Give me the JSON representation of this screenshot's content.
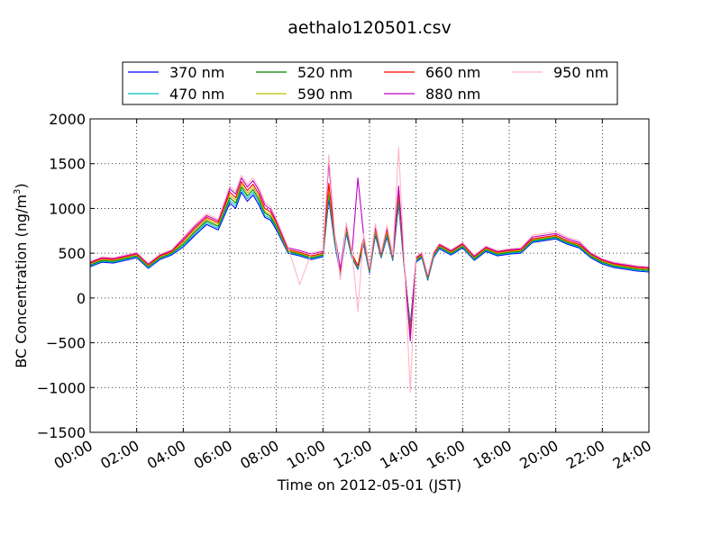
{
  "chart_data": {
    "type": "line",
    "title": "aethalo120501.csv",
    "xlabel": "Time on 2012-05-01 (JST)",
    "ylabel": "BC Concentration (ng/m",
    "ylabel_sup": "3",
    "ylabel_tail": ")",
    "xlim": [
      0,
      24
    ],
    "ylim": [
      -1500,
      2000
    ],
    "x_ticks": [
      0,
      2,
      4,
      6,
      8,
      10,
      12,
      14,
      16,
      18,
      20,
      22,
      24
    ],
    "x_tick_labels": [
      "00:00",
      "02:00",
      "04:00",
      "06:00",
      "08:00",
      "10:00",
      "12:00",
      "14:00",
      "16:00",
      "18:00",
      "20:00",
      "22:00",
      "24:00"
    ],
    "y_ticks": [
      -1500,
      -1000,
      -500,
      0,
      500,
      1000,
      1500,
      2000
    ],
    "y_tick_labels": [
      "−1500",
      "−1000",
      "−500",
      "0",
      "500",
      "1000",
      "1500",
      "2000"
    ],
    "grid": true,
    "legend_position": "top, above plot, 4 columns",
    "x": [
      0,
      0.5,
      1,
      1.5,
      2,
      2.5,
      3,
      3.5,
      4,
      4.5,
      5,
      5.5,
      6,
      6.25,
      6.5,
      6.75,
      7,
      7.25,
      7.5,
      7.75,
      8,
      8.5,
      9,
      9.5,
      10,
      10.25,
      10.5,
      10.75,
      11,
      11.25,
      11.5,
      11.75,
      12,
      12.25,
      12.5,
      12.75,
      13,
      13.25,
      13.5,
      13.75,
      14,
      14.25,
      14.5,
      14.75,
      15,
      15.5,
      16,
      16.5,
      17,
      17.5,
      18,
      18.5,
      19,
      19.5,
      20,
      20.5,
      21,
      21.5,
      22,
      22.5,
      23,
      23.5,
      24
    ],
    "series": [
      {
        "name": "370 nm",
        "color": "#0000ff",
        "values": [
          350,
          400,
          390,
          420,
          450,
          330,
          430,
          480,
          570,
          700,
          820,
          760,
          1060,
          1000,
          1180,
          1080,
          1150,
          1040,
          900,
          870,
          760,
          500,
          470,
          430,
          460,
          1100,
          620,
          250,
          720,
          450,
          320,
          600,
          280,
          700,
          450,
          680,
          420,
          1050,
          300,
          -300,
          400,
          450,
          200,
          450,
          550,
          480,
          560,
          420,
          520,
          470,
          490,
          500,
          620,
          640,
          660,
          600,
          560,
          450,
          380,
          340,
          320,
          300,
          290
        ]
      },
      {
        "name": "470 nm",
        "color": "#00bfbf",
        "values": [
          360,
          410,
          400,
          430,
          460,
          340,
          440,
          490,
          580,
          720,
          840,
          780,
          1090,
          1030,
          1210,
          1110,
          1180,
          1070,
          920,
          890,
          780,
          510,
          480,
          440,
          470,
          1140,
          640,
          270,
          740,
          460,
          330,
          620,
          290,
          720,
          460,
          700,
          430,
          1080,
          310,
          -330,
          410,
          460,
          210,
          460,
          560,
          490,
          570,
          430,
          530,
          480,
          500,
          510,
          630,
          650,
          670,
          610,
          570,
          460,
          390,
          350,
          330,
          310,
          300
        ]
      },
      {
        "name": "520 nm",
        "color": "#008000",
        "values": [
          370,
          420,
          410,
          440,
          470,
          350,
          450,
          500,
          600,
          740,
          860,
          800,
          1120,
          1060,
          1240,
          1140,
          1210,
          1100,
          950,
          910,
          800,
          520,
          490,
          450,
          480,
          1180,
          660,
          280,
          760,
          470,
          340,
          640,
          300,
          740,
          470,
          720,
          440,
          1120,
          320,
          -360,
          420,
          470,
          220,
          470,
          570,
          500,
          580,
          440,
          540,
          490,
          510,
          520,
          640,
          660,
          680,
          620,
          580,
          470,
          400,
          360,
          340,
          320,
          310
        ]
      },
      {
        "name": "590 nm",
        "color": "#bfbf00",
        "values": [
          380,
          430,
          420,
          450,
          480,
          360,
          460,
          510,
          620,
          760,
          880,
          820,
          1150,
          1090,
          1270,
          1170,
          1240,
          1130,
          970,
          930,
          820,
          530,
          500,
          460,
          490,
          1220,
          680,
          290,
          780,
          480,
          350,
          660,
          310,
          760,
          480,
          740,
          450,
          1160,
          330,
          -400,
          430,
          480,
          230,
          480,
          580,
          510,
          590,
          450,
          550,
          500,
          520,
          530,
          650,
          670,
          690,
          630,
          590,
          480,
          410,
          370,
          350,
          330,
          320
        ]
      },
      {
        "name": "660 nm",
        "color": "#ff0000",
        "values": [
          390,
          440,
          430,
          460,
          490,
          370,
          470,
          520,
          640,
          780,
          900,
          840,
          1180,
          1120,
          1300,
          1200,
          1270,
          1160,
          1000,
          960,
          840,
          540,
          510,
          470,
          500,
          1280,
          700,
          300,
          800,
          490,
          360,
          680,
          320,
          790,
          490,
          770,
          460,
          1200,
          340,
          -430,
          440,
          490,
          240,
          490,
          590,
          520,
          600,
          460,
          560,
          510,
          530,
          540,
          660,
          680,
          700,
          640,
          600,
          490,
          420,
          380,
          360,
          340,
          330
        ]
      },
      {
        "name": "880 nm",
        "color": "#bf00bf",
        "values": [
          400,
          450,
          440,
          470,
          500,
          380,
          480,
          530,
          660,
          800,
          920,
          860,
          1220,
          1160,
          1340,
          1240,
          1310,
          1200,
          1040,
          990,
          860,
          560,
          530,
          490,
          520,
          1520,
          720,
          320,
          820,
          500,
          1340,
          700,
          330,
          810,
          500,
          790,
          470,
          1250,
          350,
          -480,
          450,
          500,
          250,
          500,
          600,
          530,
          610,
          470,
          570,
          520,
          540,
          550,
          680,
          700,
          720,
          660,
          620,
          500,
          430,
          390,
          370,
          350,
          340
        ]
      },
      {
        "name": "950 nm",
        "color": "#ffb6c1",
        "values": [
          410,
          460,
          450,
          480,
          510,
          390,
          490,
          540,
          680,
          820,
          940,
          880,
          1250,
          1190,
          1370,
          1270,
          1340,
          1230,
          1070,
          1020,
          880,
          570,
          150,
          500,
          530,
          1600,
          740,
          200,
          840,
          510,
          -150,
          720,
          340,
          830,
          510,
          810,
          480,
          1680,
          360,
          -1050,
          460,
          510,
          260,
          510,
          610,
          540,
          620,
          480,
          580,
          530,
          550,
          560,
          700,
          720,
          740,
          680,
          640,
          510,
          440,
          400,
          380,
          360,
          350
        ]
      }
    ]
  }
}
